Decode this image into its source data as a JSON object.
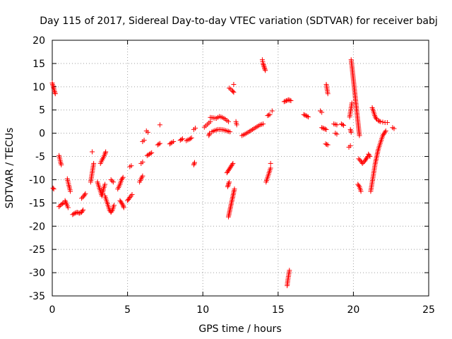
{
  "chart_data": {
    "type": "scatter",
    "title": "Day 115 of 2017, Sidereal Day-to-day VTEC variation (SDTVAR) for receiver babj",
    "xlabel": "GPS time / hours",
    "ylabel": "SDTVAR / TECUs",
    "xlim": [
      0,
      25
    ],
    "ylim": [
      -35,
      20
    ],
    "xticks": [
      "0",
      "5",
      "10",
      "15",
      "20",
      "25"
    ],
    "yticks": [
      "20",
      "15",
      "10",
      "5",
      "0",
      "-5",
      "-10",
      "-15",
      "-20",
      "-25",
      "-30",
      "-35"
    ],
    "grid": true,
    "marker": "plus",
    "color": "#ff0000",
    "series": [
      {
        "segments": [
          [
            [
              0.0,
              10.8
            ],
            [
              0.05,
              10.2
            ],
            [
              0.1,
              9.6
            ],
            [
              0.15,
              9.0
            ],
            [
              0.2,
              8.5
            ]
          ],
          [
            [
              0.05,
              -11.8
            ],
            [
              0.1,
              -12.0
            ]
          ],
          [
            [
              0.45,
              -4.8
            ],
            [
              0.5,
              -5.5
            ],
            [
              0.55,
              -6.2
            ],
            [
              0.6,
              -6.8
            ]
          ],
          [
            [
              0.45,
              -15.8
            ],
            [
              0.6,
              -15.3
            ],
            [
              0.75,
              -15.0
            ]
          ],
          [
            [
              0.85,
              -14.5
            ],
            [
              0.95,
              -15.3
            ],
            [
              1.05,
              -16.0
            ]
          ],
          [
            [
              1.0,
              -9.8
            ],
            [
              1.05,
              -10.5
            ],
            [
              1.1,
              -11.2
            ],
            [
              1.15,
              -11.8
            ],
            [
              1.2,
              -12.5
            ]
          ],
          [
            [
              1.35,
              -17.5
            ],
            [
              1.5,
              -17.2
            ],
            [
              1.65,
              -17.0
            ],
            [
              1.8,
              -17.2
            ],
            [
              1.95,
              -17.0
            ],
            [
              2.05,
              -16.5
            ]
          ],
          [
            [
              1.95,
              -14.0
            ],
            [
              2.1,
              -13.5
            ],
            [
              2.2,
              -13.0
            ]
          ],
          [
            [
              2.55,
              -10.5
            ],
            [
              2.6,
              -9.5
            ],
            [
              2.65,
              -8.5
            ],
            [
              2.7,
              -7.5
            ],
            [
              2.75,
              -6.5
            ]
          ],
          [
            [
              2.65,
              -4.0
            ]
          ],
          [
            [
              3.0,
              -10.5
            ],
            [
              3.1,
              -11.5
            ],
            [
              3.2,
              -12.5
            ],
            [
              3.3,
              -13.5
            ],
            [
              3.4,
              -12.0
            ],
            [
              3.5,
              -11.0
            ]
          ],
          [
            [
              3.2,
              -6.5
            ],
            [
              3.3,
              -5.8
            ],
            [
              3.4,
              -5.2
            ],
            [
              3.5,
              -4.5
            ],
            [
              3.55,
              -4.0
            ]
          ],
          [
            [
              3.5,
              -13.5
            ],
            [
              3.6,
              -14.5
            ],
            [
              3.7,
              -15.5
            ],
            [
              3.8,
              -16.5
            ],
            [
              3.9,
              -17.0
            ],
            [
              4.0,
              -16.5
            ],
            [
              4.1,
              -15.5
            ]
          ],
          [
            [
              3.9,
              -10.0
            ],
            [
              4.05,
              -10.5
            ]
          ],
          [
            [
              4.5,
              -14.5
            ],
            [
              4.6,
              -15.0
            ],
            [
              4.7,
              -15.5
            ],
            [
              4.75,
              -16.0
            ]
          ],
          [
            [
              4.35,
              -12.0
            ],
            [
              4.5,
              -11.0
            ],
            [
              4.6,
              -10.0
            ],
            [
              4.7,
              -9.5
            ]
          ],
          [
            [
              5.0,
              -14.5
            ],
            [
              5.15,
              -13.8
            ],
            [
              5.3,
              -13.2
            ]
          ],
          [
            [
              5.15,
              -7.2
            ],
            [
              5.25,
              -7.0
            ]
          ],
          [
            [
              5.8,
              -10.5
            ],
            [
              5.9,
              -9.8
            ],
            [
              6.0,
              -9.2
            ]
          ],
          [
            [
              5.9,
              -6.5
            ],
            [
              6.0,
              -6.2
            ]
          ],
          [
            [
              6.0,
              -1.8
            ],
            [
              6.1,
              -1.5
            ]
          ],
          [
            [
              6.25,
              0.5
            ],
            [
              6.35,
              0.2
            ]
          ],
          [
            [
              6.3,
              -4.8
            ],
            [
              6.45,
              -4.5
            ],
            [
              6.6,
              -4.2
            ]
          ],
          [
            [
              7.0,
              -2.5
            ],
            [
              7.15,
              -2.2
            ]
          ],
          [
            [
              7.15,
              1.8
            ]
          ],
          [
            [
              7.8,
              -2.3
            ],
            [
              7.95,
              -2.0
            ],
            [
              8.05,
              -1.8
            ]
          ],
          [
            [
              8.5,
              -1.5
            ],
            [
              8.65,
              -1.2
            ]
          ],
          [
            [
              8.9,
              -1.6
            ],
            [
              9.1,
              -1.3
            ],
            [
              9.25,
              -1.0
            ]
          ],
          [
            [
              9.4,
              -6.8
            ],
            [
              9.45,
              -6.3
            ]
          ],
          [
            [
              9.4,
              0.8
            ],
            [
              9.5,
              1.1
            ]
          ],
          [
            [
              10.1,
              1.3
            ],
            [
              10.2,
              1.6
            ],
            [
              10.3,
              1.9
            ],
            [
              10.4,
              2.2
            ],
            [
              10.5,
              2.5
            ]
          ],
          [
            [
              10.4,
              -0.5
            ],
            [
              10.45,
              0.0
            ]
          ],
          [
            [
              10.6,
              0.3
            ],
            [
              10.8,
              0.6
            ],
            [
              11.0,
              0.8
            ],
            [
              11.2,
              0.8
            ],
            [
              11.4,
              0.7
            ],
            [
              11.6,
              0.5
            ],
            [
              11.8,
              0.3
            ]
          ],
          [
            [
              10.5,
              3.4
            ],
            [
              10.7,
              3.3
            ],
            [
              10.9,
              3.2
            ],
            [
              11.1,
              3.6
            ],
            [
              11.3,
              3.4
            ],
            [
              11.5,
              3.0
            ],
            [
              11.7,
              2.5
            ]
          ],
          [
            [
              11.6,
              -8.5
            ],
            [
              11.7,
              -8.0
            ],
            [
              11.8,
              -7.5
            ],
            [
              11.9,
              -7.0
            ],
            [
              12.0,
              -6.5
            ]
          ],
          [
            [
              11.65,
              -11.5
            ],
            [
              11.7,
              -11.0
            ],
            [
              11.75,
              -10.5
            ]
          ],
          [
            [
              11.7,
              -18.0
            ],
            [
              11.8,
              -16.5
            ],
            [
              11.9,
              -15.0
            ],
            [
              12.0,
              -13.5
            ],
            [
              12.1,
              -12.0
            ]
          ],
          [
            [
              11.75,
              9.7
            ],
            [
              11.85,
              9.5
            ],
            [
              11.95,
              9.2
            ],
            [
              12.05,
              8.8
            ]
          ],
          [
            [
              12.05,
              10.5
            ]
          ],
          [
            [
              12.2,
              2.5
            ],
            [
              12.25,
              1.8
            ]
          ],
          [
            [
              12.6,
              -0.5
            ],
            [
              12.8,
              -0.2
            ],
            [
              13.0,
              0.2
            ],
            [
              13.2,
              0.6
            ],
            [
              13.4,
              1.0
            ],
            [
              13.6,
              1.4
            ],
            [
              13.8,
              1.8
            ],
            [
              14.0,
              2.0
            ]
          ],
          [
            [
              13.95,
              15.8
            ],
            [
              14.0,
              15.0
            ],
            [
              14.05,
              14.5
            ],
            [
              14.1,
              14.0
            ],
            [
              14.15,
              13.5
            ]
          ],
          [
            [
              14.2,
              -10.5
            ],
            [
              14.3,
              -9.5
            ],
            [
              14.4,
              -8.5
            ],
            [
              14.5,
              -7.5
            ]
          ],
          [
            [
              14.3,
              3.8
            ],
            [
              14.45,
              4.0
            ]
          ],
          [
            [
              14.5,
              -6.5
            ]
          ],
          [
            [
              14.6,
              4.8
            ]
          ],
          [
            [
              15.4,
              6.8
            ],
            [
              15.55,
              7.0
            ],
            [
              15.7,
              7.2
            ],
            [
              15.85,
              7.0
            ]
          ],
          [
            [
              15.6,
              -32.8
            ],
            [
              15.65,
              -31.5
            ],
            [
              15.7,
              -30.5
            ],
            [
              15.75,
              -29.5
            ]
          ],
          [
            [
              16.7,
              4.0
            ],
            [
              16.85,
              3.8
            ],
            [
              17.0,
              3.5
            ]
          ],
          [
            [
              17.8,
              4.8
            ],
            [
              17.9,
              4.5
            ]
          ],
          [
            [
              17.9,
              1.2
            ],
            [
              18.05,
              1.0
            ],
            [
              18.2,
              0.8
            ]
          ],
          [
            [
              18.2,
              10.5
            ],
            [
              18.25,
              9.5
            ],
            [
              18.3,
              8.5
            ]
          ],
          [
            [
              18.15,
              -2.3
            ],
            [
              18.3,
              -2.5
            ]
          ],
          [
            [
              18.7,
              2.0
            ],
            [
              18.9,
              1.8
            ]
          ],
          [
            [
              18.8,
              0.0
            ],
            [
              18.9,
              -0.2
            ]
          ],
          [
            [
              19.2,
              2.0
            ],
            [
              19.35,
              1.7
            ]
          ],
          [
            [
              19.7,
              -3.0
            ],
            [
              19.8,
              -2.7
            ]
          ],
          [
            [
              19.75,
              3.5
            ],
            [
              19.8,
              4.5
            ],
            [
              19.85,
              5.5
            ],
            [
              19.9,
              6.5
            ]
          ],
          [
            [
              19.8,
              0.8
            ],
            [
              19.85,
              0.2
            ]
          ],
          [
            [
              19.85,
              15.8
            ],
            [
              19.9,
              14.5
            ],
            [
              19.95,
              13.0
            ],
            [
              20.0,
              11.5
            ],
            [
              20.05,
              10.0
            ],
            [
              20.1,
              8.5
            ],
            [
              20.15,
              7.0
            ],
            [
              20.2,
              5.5
            ],
            [
              20.25,
              4.0
            ],
            [
              20.3,
              2.5
            ],
            [
              20.35,
              1.0
            ],
            [
              20.4,
              -0.5
            ]
          ],
          [
            [
              20.3,
              -11.0
            ],
            [
              20.4,
              -11.5
            ],
            [
              20.5,
              -12.5
            ]
          ],
          [
            [
              20.35,
              -5.5
            ],
            [
              20.5,
              -6.0
            ],
            [
              20.6,
              -6.5
            ],
            [
              20.75,
              -6.0
            ],
            [
              20.85,
              -5.5
            ],
            [
              20.95,
              -5.0
            ]
          ],
          [
            [
              21.0,
              -4.5
            ],
            [
              21.1,
              -5.0
            ]
          ],
          [
            [
              21.15,
              -12.5
            ],
            [
              21.25,
              -10.5
            ],
            [
              21.35,
              -8.5
            ],
            [
              21.45,
              -6.5
            ],
            [
              21.55,
              -5.0
            ],
            [
              21.65,
              -3.5
            ],
            [
              21.75,
              -2.5
            ],
            [
              21.85,
              -1.5
            ],
            [
              21.95,
              -0.5
            ],
            [
              22.05,
              0.0
            ],
            [
              22.15,
              0.5
            ]
          ],
          [
            [
              21.25,
              5.5
            ],
            [
              21.35,
              4.5
            ],
            [
              21.45,
              3.5
            ],
            [
              21.55,
              3.0
            ],
            [
              21.65,
              2.7
            ],
            [
              21.8,
              2.5
            ],
            [
              21.95,
              2.4
            ],
            [
              22.1,
              2.3
            ],
            [
              22.25,
              2.3
            ]
          ],
          [
            [
              22.6,
              1.2
            ],
            [
              22.7,
              1.0
            ]
          ]
        ]
      }
    ]
  }
}
